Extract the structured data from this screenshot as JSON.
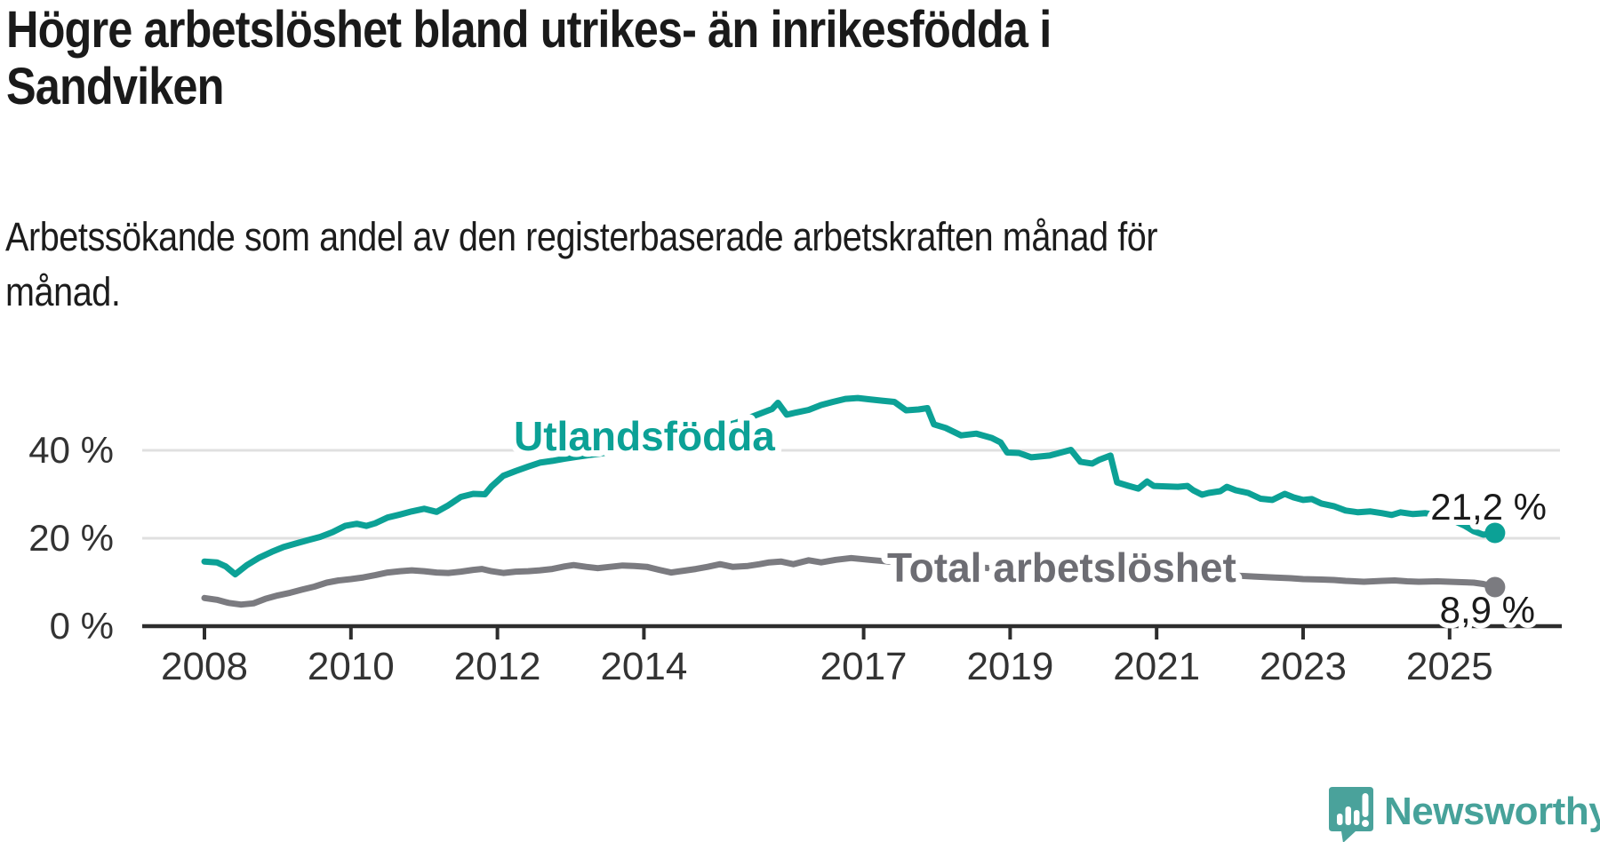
{
  "title": {
    "text": "Högre arbetslöshet bland utrikes- än inrikesfödda i Sandviken",
    "lines": [
      "Högre arbetslöshet bland utrikes- än inrikesfödda i",
      "Sandviken"
    ]
  },
  "subtitle": {
    "text": "Arbetssökande som andel av den registerbaserade arbetskraften månad för månad.",
    "lines": [
      "Arbetssökande som andel av den registerbaserade arbetskraften månad för",
      "månad."
    ]
  },
  "branding": {
    "name": "Newsworthy",
    "color": "#47a29a",
    "logo_icon": "speech-bubble-bar-chart-icon"
  },
  "colors": {
    "utlandsfodda": "#0ca196",
    "total": "#7b7b80",
    "total_label": "#6d6d73",
    "grid": "#e0e0e0",
    "axis": "#2d2d2d",
    "tick_text": "#333333",
    "annotation_text": "#1a1a1a",
    "background": "#ffffff"
  },
  "chart_data": {
    "type": "line",
    "title": "Högre arbetslöshet bland utrikes- än inrikesfödda i Sandviken",
    "subtitle": "Arbetssökande som andel av den registerbaserade arbetskraften månad för månad.",
    "unit": "percent",
    "grid": true,
    "legend_position": "inline-labels",
    "x_axis": {
      "ticks": [
        "2008",
        "2010",
        "2012",
        "2014",
        "2017",
        "2019",
        "2021",
        "2023",
        "2025"
      ],
      "tick_years": [
        2008,
        2010,
        2012,
        2014,
        2017,
        2019,
        2021,
        2023,
        2025
      ],
      "range_years": [
        2007.15,
        2026.5
      ]
    },
    "y_axis": {
      "ticks": [
        {
          "value": 0,
          "label": "0 %"
        },
        {
          "value": 20,
          "label": "20 %"
        },
        {
          "value": 40,
          "label": "40 %"
        }
      ],
      "range": [
        0,
        55
      ]
    },
    "series": [
      {
        "name": "Total arbetslöshet",
        "end_label": "8,9 %",
        "end_value": 8.9,
        "points": [
          [
            2008.0,
            6.4
          ],
          [
            2008.17,
            6.0
          ],
          [
            2008.33,
            5.3
          ],
          [
            2008.5,
            4.9
          ],
          [
            2008.67,
            5.2
          ],
          [
            2008.83,
            6.2
          ],
          [
            2009.0,
            7.0
          ],
          [
            2009.17,
            7.6
          ],
          [
            2009.33,
            8.3
          ],
          [
            2009.5,
            9.0
          ],
          [
            2009.67,
            9.9
          ],
          [
            2009.83,
            10.4
          ],
          [
            2010.0,
            10.7
          ],
          [
            2010.17,
            11.1
          ],
          [
            2010.33,
            11.6
          ],
          [
            2010.5,
            12.2
          ],
          [
            2010.67,
            12.5
          ],
          [
            2010.83,
            12.7
          ],
          [
            2011.0,
            12.5
          ],
          [
            2011.17,
            12.2
          ],
          [
            2011.33,
            12.1
          ],
          [
            2011.5,
            12.4
          ],
          [
            2011.67,
            12.8
          ],
          [
            2011.79,
            13.0
          ],
          [
            2011.92,
            12.5
          ],
          [
            2012.08,
            12.1
          ],
          [
            2012.25,
            12.4
          ],
          [
            2012.42,
            12.5
          ],
          [
            2012.58,
            12.7
          ],
          [
            2012.75,
            13.0
          ],
          [
            2012.92,
            13.6
          ],
          [
            2013.04,
            13.9
          ],
          [
            2013.21,
            13.5
          ],
          [
            2013.37,
            13.2
          ],
          [
            2013.54,
            13.5
          ],
          [
            2013.71,
            13.8
          ],
          [
            2013.87,
            13.7
          ],
          [
            2014.04,
            13.5
          ],
          [
            2014.21,
            12.8
          ],
          [
            2014.37,
            12.2
          ],
          [
            2014.54,
            12.6
          ],
          [
            2014.71,
            13.0
          ],
          [
            2014.87,
            13.5
          ],
          [
            2015.04,
            14.1
          ],
          [
            2015.21,
            13.5
          ],
          [
            2015.42,
            13.7
          ],
          [
            2015.58,
            14.1
          ],
          [
            2015.71,
            14.5
          ],
          [
            2015.87,
            14.7
          ],
          [
            2016.04,
            14.1
          ],
          [
            2016.25,
            15.0
          ],
          [
            2016.42,
            14.5
          ],
          [
            2016.62,
            15.1
          ],
          [
            2016.83,
            15.5
          ],
          [
            2017.08,
            15.1
          ],
          [
            2017.33,
            14.7
          ],
          [
            2017.58,
            14.9
          ],
          [
            2017.83,
            14.6
          ],
          [
            2018.08,
            14.1
          ],
          [
            2018.33,
            13.8
          ],
          [
            2018.58,
            13.4
          ],
          [
            2018.83,
            13.0
          ],
          [
            2019.08,
            12.7
          ],
          [
            2019.33,
            12.5
          ],
          [
            2019.58,
            12.3
          ],
          [
            2019.83,
            12.2
          ],
          [
            2020.08,
            12.3
          ],
          [
            2020.33,
            12.7
          ],
          [
            2020.58,
            12.8
          ],
          [
            2020.83,
            12.6
          ],
          [
            2021.08,
            12.2
          ],
          [
            2021.33,
            12.0
          ],
          [
            2021.58,
            11.8
          ],
          [
            2021.83,
            11.6
          ],
          [
            2022.08,
            11.5
          ],
          [
            2022.33,
            11.3
          ],
          [
            2022.58,
            11.1
          ],
          [
            2022.83,
            10.9
          ],
          [
            2023.0,
            10.7
          ],
          [
            2023.25,
            10.6
          ],
          [
            2023.42,
            10.5
          ],
          [
            2023.58,
            10.3
          ],
          [
            2023.83,
            10.1
          ],
          [
            2024.08,
            10.3
          ],
          [
            2024.25,
            10.4
          ],
          [
            2024.42,
            10.2
          ],
          [
            2024.58,
            10.1
          ],
          [
            2024.83,
            10.2
          ],
          [
            2025.0,
            10.1
          ],
          [
            2025.17,
            10.0
          ],
          [
            2025.33,
            9.9
          ],
          [
            2025.46,
            9.6
          ],
          [
            2025.62,
            8.9
          ]
        ]
      },
      {
        "name": "Utlandsfödda",
        "end_label": "21,2 %",
        "end_value": 21.2,
        "points": [
          [
            2008.0,
            14.7
          ],
          [
            2008.17,
            14.5
          ],
          [
            2008.29,
            13.6
          ],
          [
            2008.42,
            11.8
          ],
          [
            2008.58,
            13.9
          ],
          [
            2008.75,
            15.6
          ],
          [
            2008.92,
            16.9
          ],
          [
            2009.08,
            18.0
          ],
          [
            2009.25,
            18.8
          ],
          [
            2009.42,
            19.6
          ],
          [
            2009.58,
            20.3
          ],
          [
            2009.75,
            21.4
          ],
          [
            2009.92,
            22.8
          ],
          [
            2010.08,
            23.3
          ],
          [
            2010.21,
            22.8
          ],
          [
            2010.33,
            23.4
          ],
          [
            2010.5,
            24.7
          ],
          [
            2010.67,
            25.4
          ],
          [
            2010.83,
            26.1
          ],
          [
            2011.0,
            26.7
          ],
          [
            2011.17,
            26.0
          ],
          [
            2011.33,
            27.5
          ],
          [
            2011.5,
            29.4
          ],
          [
            2011.67,
            30.1
          ],
          [
            2011.83,
            30.0
          ],
          [
            2011.92,
            31.8
          ],
          [
            2012.08,
            34.2
          ],
          [
            2012.25,
            35.3
          ],
          [
            2012.42,
            36.3
          ],
          [
            2012.58,
            37.2
          ],
          [
            2012.75,
            37.6
          ],
          [
            2012.92,
            38.1
          ],
          [
            2013.08,
            38.5
          ],
          [
            2013.25,
            38.9
          ],
          [
            2013.42,
            39.3
          ],
          [
            2013.58,
            39.8
          ],
          [
            2013.75,
            40.3
          ],
          [
            2013.92,
            41.0
          ],
          [
            2014.08,
            41.7
          ],
          [
            2014.25,
            42.3
          ],
          [
            2014.42,
            42.9
          ],
          [
            2014.58,
            43.4
          ],
          [
            2014.75,
            44.1
          ],
          [
            2014.92,
            44.9
          ],
          [
            2015.08,
            45.5
          ],
          [
            2015.25,
            46.2
          ],
          [
            2015.42,
            47.3
          ],
          [
            2015.58,
            48.3
          ],
          [
            2015.75,
            49.4
          ],
          [
            2015.83,
            50.8
          ],
          [
            2015.95,
            48.1
          ],
          [
            2016.08,
            48.6
          ],
          [
            2016.25,
            49.2
          ],
          [
            2016.42,
            50.3
          ],
          [
            2016.58,
            51.0
          ],
          [
            2016.75,
            51.7
          ],
          [
            2016.92,
            51.9
          ],
          [
            2017.08,
            51.6
          ],
          [
            2017.25,
            51.3
          ],
          [
            2017.42,
            51.0
          ],
          [
            2017.58,
            49.1
          ],
          [
            2017.75,
            49.3
          ],
          [
            2017.87,
            49.6
          ],
          [
            2017.96,
            45.9
          ],
          [
            2018.12,
            45.1
          ],
          [
            2018.33,
            43.4
          ],
          [
            2018.54,
            43.8
          ],
          [
            2018.75,
            42.8
          ],
          [
            2018.87,
            41.8
          ],
          [
            2018.96,
            39.5
          ],
          [
            2019.12,
            39.4
          ],
          [
            2019.29,
            38.4
          ],
          [
            2019.54,
            38.8
          ],
          [
            2019.83,
            40.1
          ],
          [
            2019.96,
            37.4
          ],
          [
            2020.12,
            37.0
          ],
          [
            2020.21,
            37.8
          ],
          [
            2020.37,
            38.8
          ],
          [
            2020.46,
            32.7
          ],
          [
            2020.62,
            31.9
          ],
          [
            2020.75,
            31.3
          ],
          [
            2020.87,
            32.9
          ],
          [
            2020.96,
            31.9
          ],
          [
            2021.12,
            31.8
          ],
          [
            2021.29,
            31.7
          ],
          [
            2021.42,
            31.9
          ],
          [
            2021.5,
            30.9
          ],
          [
            2021.62,
            29.9
          ],
          [
            2021.71,
            30.3
          ],
          [
            2021.87,
            30.7
          ],
          [
            2021.96,
            31.7
          ],
          [
            2022.08,
            30.9
          ],
          [
            2022.25,
            30.3
          ],
          [
            2022.42,
            29.0
          ],
          [
            2022.58,
            28.7
          ],
          [
            2022.75,
            30.1
          ],
          [
            2022.87,
            29.3
          ],
          [
            2023.0,
            28.7
          ],
          [
            2023.12,
            28.9
          ],
          [
            2023.25,
            27.9
          ],
          [
            2023.42,
            27.3
          ],
          [
            2023.58,
            26.3
          ],
          [
            2023.75,
            25.9
          ],
          [
            2023.92,
            26.1
          ],
          [
            2024.08,
            25.7
          ],
          [
            2024.21,
            25.3
          ],
          [
            2024.33,
            25.9
          ],
          [
            2024.5,
            25.5
          ],
          [
            2024.67,
            25.7
          ],
          [
            2024.83,
            25.3
          ],
          [
            2024.96,
            24.8
          ],
          [
            2025.08,
            23.8
          ],
          [
            2025.21,
            22.8
          ],
          [
            2025.33,
            21.6
          ],
          [
            2025.46,
            20.8
          ],
          [
            2025.62,
            21.2
          ]
        ]
      }
    ]
  }
}
